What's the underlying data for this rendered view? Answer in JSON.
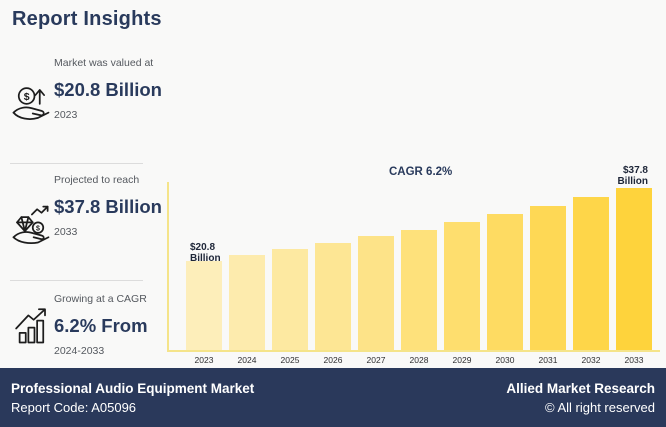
{
  "title": "Report Insights",
  "colors": {
    "navy_text": "#293A5C",
    "gray_text": "#55595F",
    "footer_bg": "#2A395B",
    "page_bg": "#F9F9F8",
    "axis_line": "#F5E48A",
    "divider": "#DCDCDC"
  },
  "stats": [
    {
      "icon": "money-growth-icon",
      "label": "Market was valued at",
      "value": "$20.8 Billion",
      "period": "2023"
    },
    {
      "icon": "investment-icon",
      "label": "Projected to reach",
      "value": "$37.8 Billion",
      "period": "2033"
    },
    {
      "icon": "growth-chart-icon",
      "label": "Growing at a CAGR",
      "value": "6.2% From",
      "period": "2024-2033"
    }
  ],
  "chart_data": {
    "type": "bar",
    "title": "",
    "cagr_label": "CAGR 6.2%",
    "categories": [
      "2023",
      "2024",
      "2025",
      "2026",
      "2027",
      "2028",
      "2029",
      "2030",
      "2031",
      "2032",
      "2033"
    ],
    "values": [
      20.8,
      22.1,
      23.5,
      24.9,
      26.5,
      28.1,
      29.8,
      31.7,
      33.7,
      35.7,
      37.8
    ],
    "unit": "USD Billion",
    "ylim": [
      0,
      40
    ],
    "grid": false,
    "legend": "none",
    "bar_color_start": "#FDEEBA",
    "bar_color_end": "#FED33C",
    "first_bar_label": {
      "line1": "$20.8",
      "line2": "Billion"
    },
    "last_bar_label": {
      "line1": "$37.8",
      "line2": "Billion"
    }
  },
  "footer": {
    "market_name": "Professional Audio Equipment Market",
    "report_code": "Report Code: A05096",
    "company": "Allied Market Research",
    "copyright": "© All right reserved"
  }
}
